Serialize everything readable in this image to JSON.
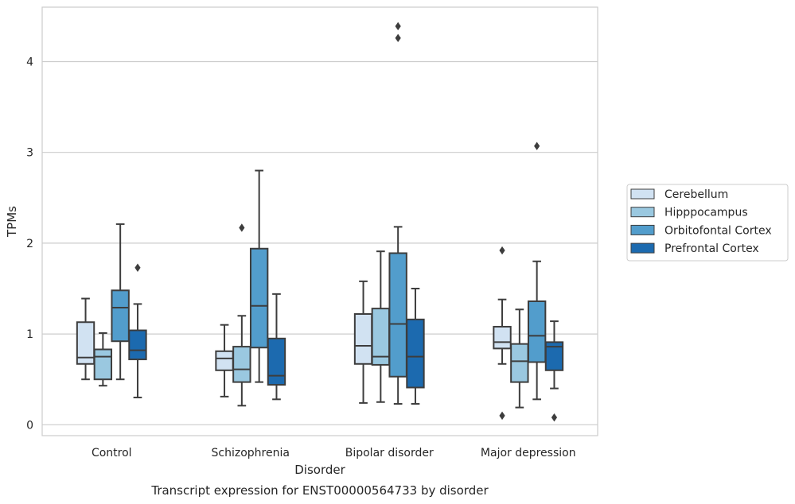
{
  "chart_data": {
    "type": "box",
    "title": "Transcript expression for ENST00000564733 by disorder",
    "xlabel": "Disorder",
    "ylabel": "TPMs",
    "categories": [
      "Control",
      "Schizophrenia",
      "Bipolar disorder",
      "Major depression"
    ],
    "yticks": [
      "0",
      "1",
      "2",
      "3",
      "4"
    ],
    "ylim": [
      -0.12,
      4.6
    ],
    "grid": "horizontal",
    "legend_position": "right",
    "series": [
      {
        "name": "Cerebellum",
        "color": "#d1e2f2",
        "boxes": [
          {
            "whislo": 0.5,
            "q1": 0.67,
            "med": 0.74,
            "q3": 1.13,
            "whishi": 1.39,
            "fliers": []
          },
          {
            "whislo": 0.31,
            "q1": 0.6,
            "med": 0.73,
            "q3": 0.81,
            "whishi": 1.1,
            "fliers": []
          },
          {
            "whislo": 0.24,
            "q1": 0.67,
            "med": 0.87,
            "q3": 1.22,
            "whishi": 1.58,
            "fliers": []
          },
          {
            "whislo": 0.67,
            "q1": 0.84,
            "med": 0.91,
            "q3": 1.08,
            "whishi": 1.38,
            "fliers": [
              1.92,
              0.1
            ]
          }
        ]
      },
      {
        "name": "Hipppocampus",
        "color": "#9ac8e0",
        "boxes": [
          {
            "whislo": 0.43,
            "q1": 0.5,
            "med": 0.75,
            "q3": 0.83,
            "whishi": 1.01,
            "fliers": []
          },
          {
            "whislo": 0.21,
            "q1": 0.47,
            "med": 0.61,
            "q3": 0.86,
            "whishi": 1.2,
            "fliers": [
              2.17
            ]
          },
          {
            "whislo": 0.25,
            "q1": 0.66,
            "med": 0.75,
            "q3": 1.28,
            "whishi": 1.91,
            "fliers": []
          },
          {
            "whislo": 0.19,
            "q1": 0.47,
            "med": 0.7,
            "q3": 0.89,
            "whishi": 1.27,
            "fliers": []
          }
        ]
      },
      {
        "name": "Orbitofontal Cortex",
        "color": "#529dcc",
        "boxes": [
          {
            "whislo": 0.5,
            "q1": 0.92,
            "med": 1.29,
            "q3": 1.48,
            "whishi": 2.21,
            "fliers": []
          },
          {
            "whislo": 0.47,
            "q1": 0.85,
            "med": 1.31,
            "q3": 1.94,
            "whishi": 2.8,
            "fliers": []
          },
          {
            "whislo": 0.23,
            "q1": 0.53,
            "med": 1.11,
            "q3": 1.89,
            "whishi": 2.18,
            "fliers": [
              4.39,
              4.26
            ]
          },
          {
            "whislo": 0.28,
            "q1": 0.69,
            "med": 0.98,
            "q3": 1.36,
            "whishi": 1.8,
            "fliers": [
              3.07
            ]
          }
        ]
      },
      {
        "name": "Prefrontal Cortex",
        "color": "#1c6aaf",
        "boxes": [
          {
            "whislo": 0.3,
            "q1": 0.72,
            "med": 0.82,
            "q3": 1.04,
            "whishi": 1.33,
            "fliers": [
              1.73
            ]
          },
          {
            "whislo": 0.28,
            "q1": 0.44,
            "med": 0.54,
            "q3": 0.95,
            "whishi": 1.44,
            "fliers": []
          },
          {
            "whislo": 0.23,
            "q1": 0.41,
            "med": 0.75,
            "q3": 1.16,
            "whishi": 1.5,
            "fliers": []
          },
          {
            "whislo": 0.4,
            "q1": 0.6,
            "med": 0.86,
            "q3": 0.91,
            "whishi": 1.14,
            "fliers": [
              0.08
            ]
          }
        ]
      }
    ]
  }
}
